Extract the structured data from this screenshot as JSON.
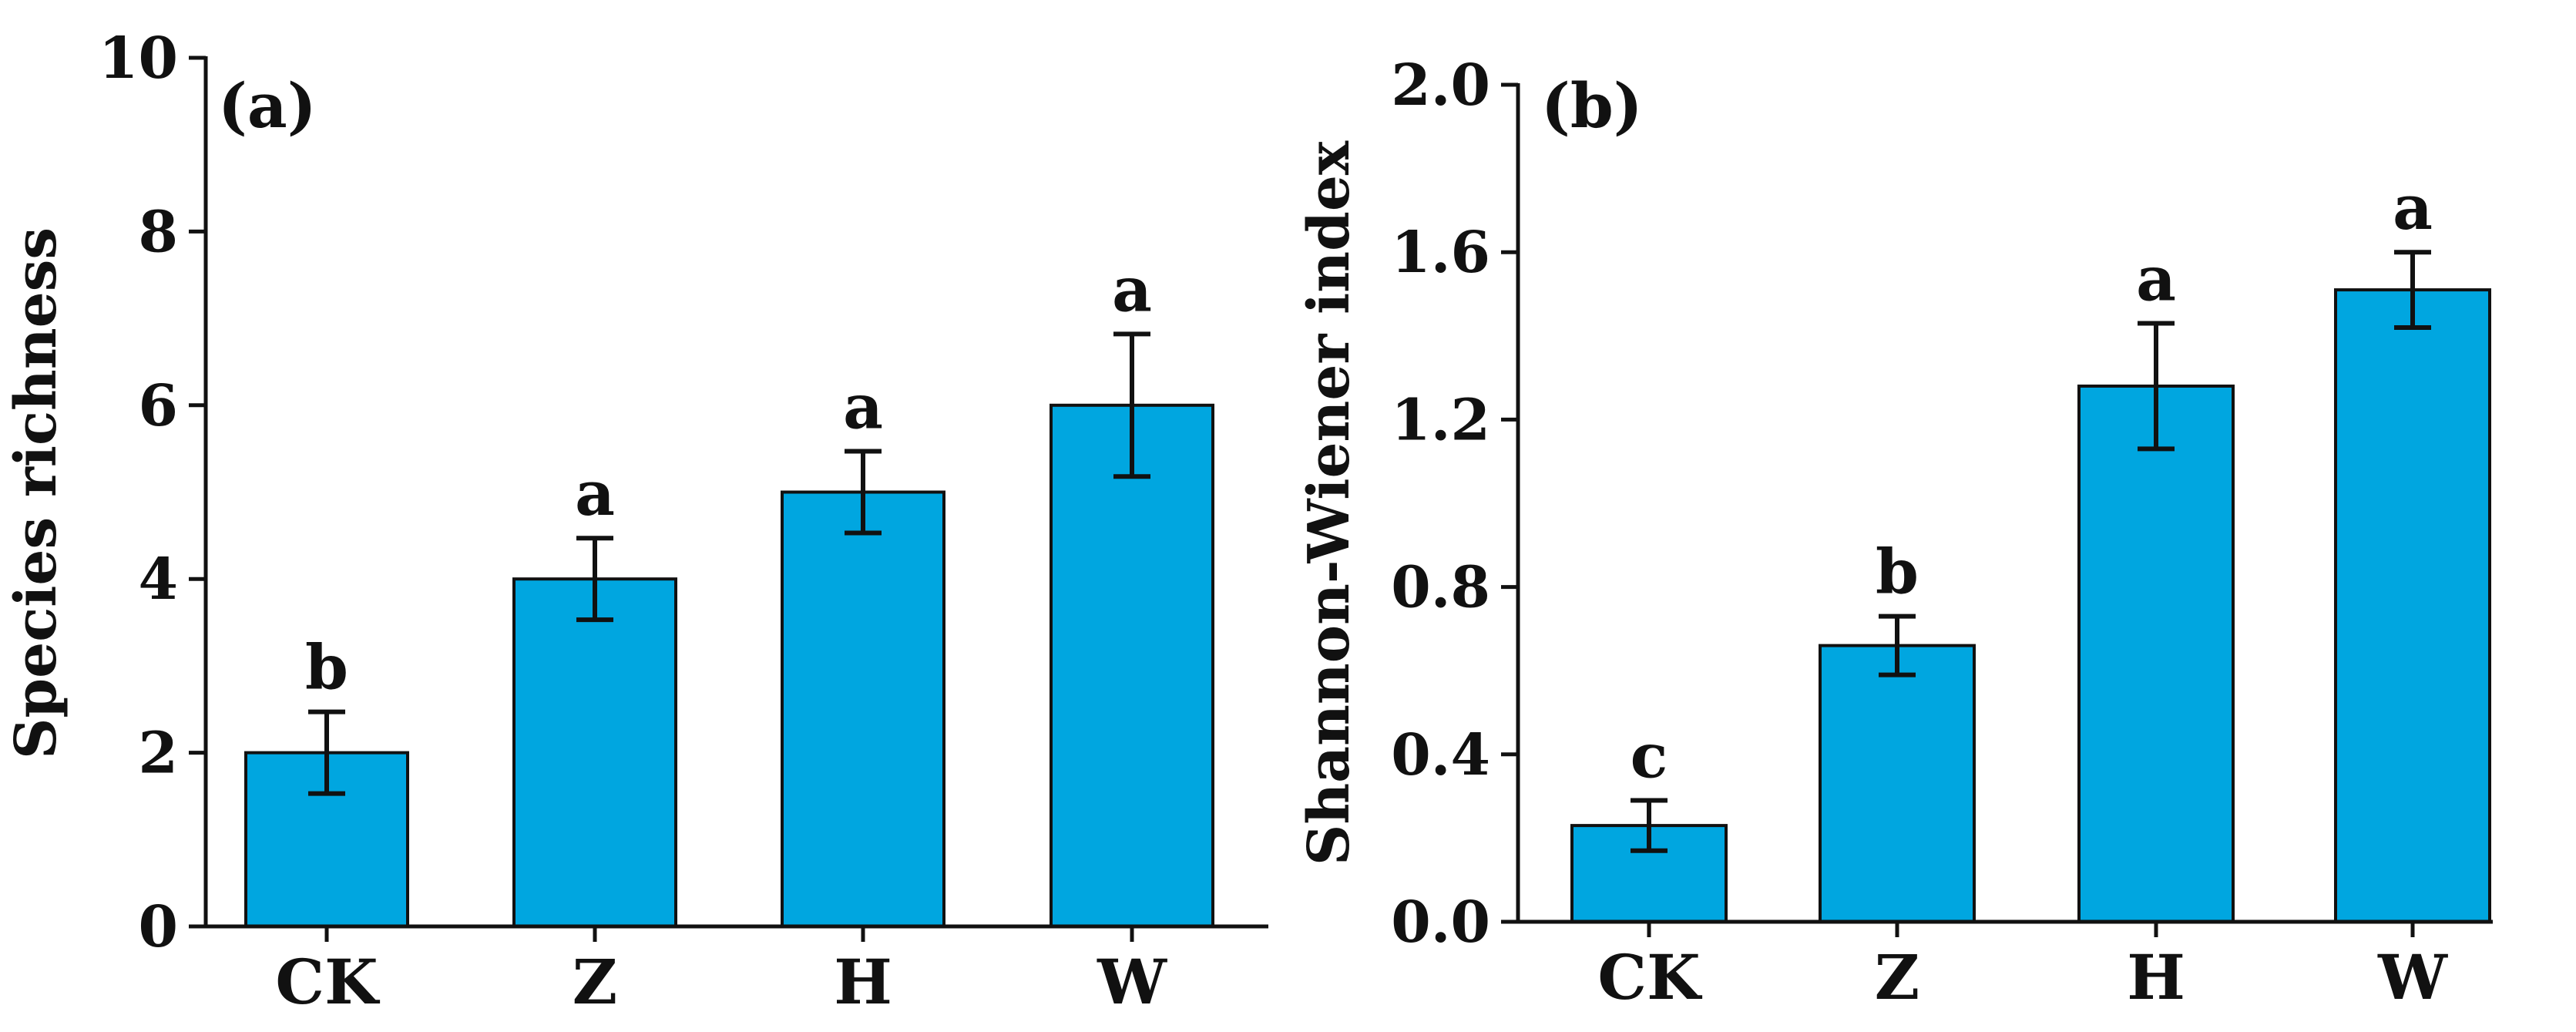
{
  "chart_data": [
    {
      "type": "bar",
      "panel_label": "(a)",
      "ylabel": "Species richness",
      "xlabel": "",
      "ylim": [
        0,
        10
      ],
      "yticks": [
        0,
        2,
        4,
        6,
        8,
        10
      ],
      "ytick_labels": [
        "0",
        "2",
        "4",
        "6",
        "8",
        "10"
      ],
      "categories": [
        "CK",
        "Z",
        "H",
        "W"
      ],
      "values": [
        2.0,
        4.0,
        5.0,
        6.0
      ],
      "errors": [
        0.47,
        0.47,
        0.47,
        0.82
      ],
      "significance": [
        "b",
        "a",
        "a",
        "a"
      ],
      "bar_color": "#00a6e0"
    },
    {
      "type": "bar",
      "panel_label": "(b)",
      "ylabel": "Shannon-Wiener index",
      "xlabel": "",
      "ylim": [
        0,
        2.0
      ],
      "yticks": [
        0,
        0.4,
        0.8,
        1.2,
        1.6,
        2.0
      ],
      "ytick_labels": [
        "0.0",
        "0.4",
        "0.8",
        "1.2",
        "1.6",
        "2.0"
      ],
      "categories": [
        "CK",
        "Z",
        "H",
        "W"
      ],
      "values": [
        0.23,
        0.66,
        1.28,
        1.51
      ],
      "errors": [
        0.06,
        0.07,
        0.15,
        0.09
      ],
      "significance": [
        "c",
        "b",
        "a",
        "a"
      ],
      "bar_color": "#00a6e0"
    }
  ]
}
